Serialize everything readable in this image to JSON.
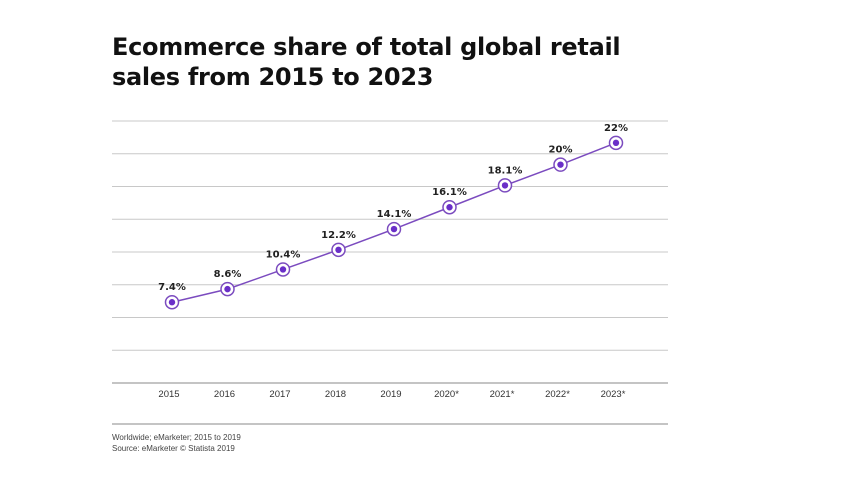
{
  "title": "Ecommerce share of total global retail sales from 2015 to 2023",
  "footer": {
    "note": "Worldwide; eMarketer; 2015 to 2019",
    "source": "Source: eMarketer © Statista 2019"
  },
  "colors": {
    "line": "#7b4bbf",
    "marker": "#6a2fc8",
    "grid": "#c8c8c8",
    "axis": "#888888"
  },
  "chart_data": {
    "type": "line",
    "title": "Ecommerce share of total global retail sales from 2015 to 2023",
    "categories": [
      "2015",
      "2016",
      "2017",
      "2018",
      "2019",
      "2020*",
      "2021*",
      "2022*",
      "2023*"
    ],
    "series": [
      {
        "values": [
          7.4,
          8.6,
          10.4,
          12.2,
          14.1,
          16.1,
          18.1,
          20,
          22
        ],
        "labels": [
          "7.4%",
          "8.6%",
          "10.4%",
          "12.2%",
          "14.1%",
          "16.1%",
          "18.1%",
          "20%",
          "22%"
        ]
      }
    ],
    "ylim": [
      0,
      24
    ],
    "grid": true,
    "xlabel": "",
    "ylabel": ""
  }
}
